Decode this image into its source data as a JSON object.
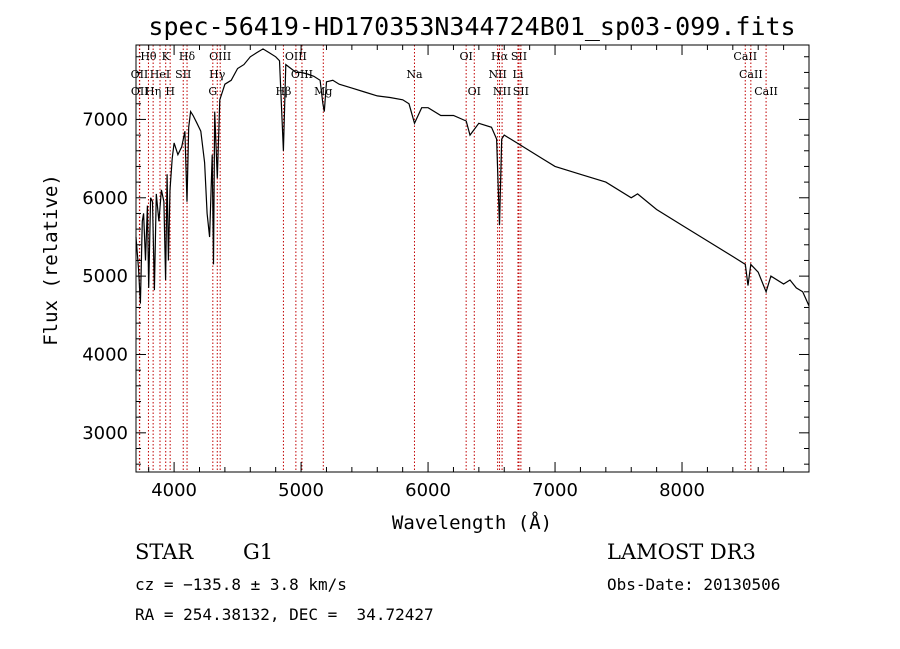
{
  "chart_data": {
    "type": "line",
    "title": "spec-56419-HD170353N344724B01_sp03-099.fits",
    "xlabel": "Wavelength (Å)",
    "ylabel": "Flux (relative)",
    "xlim": [
      3700,
      9000
    ],
    "ylim": [
      2500,
      7950
    ],
    "xticks": [
      4000,
      5000,
      6000,
      7000,
      8000
    ],
    "yticks": [
      3000,
      4000,
      5000,
      6000,
      7000
    ],
    "tick_labels_x": [
      "4000",
      "5000",
      "6000",
      "7000",
      "8000"
    ],
    "tick_labels_y": [
      "3000",
      "4000",
      "5000",
      "6000",
      "7000"
    ],
    "series": [
      {
        "name": "spectrum",
        "x": [
          3700,
          3720,
          3735,
          3750,
          3760,
          3775,
          3790,
          3800,
          3815,
          3830,
          3845,
          3860,
          3880,
          3900,
          3920,
          3933,
          3945,
          3955,
          3968,
          3985,
          4000,
          4030,
          4060,
          4085,
          4102,
          4115,
          4130,
          4150,
          4180,
          4210,
          4240,
          4260,
          4280,
          4300,
          4310,
          4320,
          4340,
          4360,
          4400,
          4450,
          4500,
          4550,
          4600,
          4650,
          4700,
          4750,
          4800,
          4830,
          4861,
          4880,
          4920,
          4960,
          5000,
          5050,
          5100,
          5150,
          5172,
          5183,
          5200,
          5250,
          5300,
          5400,
          5500,
          5600,
          5700,
          5800,
          5850,
          5893,
          5950,
          6000,
          6100,
          6200,
          6300,
          6330,
          6400,
          6500,
          6540,
          6563,
          6580,
          6600,
          6650,
          6700,
          6800,
          6900,
          7000,
          7200,
          7400,
          7600,
          7650,
          7800,
          8000,
          8200,
          8400,
          8498,
          8520,
          8542,
          8600,
          8662,
          8700,
          8800,
          8850,
          8900,
          8950,
          9000
        ],
        "values": [
          5500,
          5100,
          4650,
          5700,
          5800,
          5200,
          5900,
          4850,
          6000,
          5950,
          4820,
          6050,
          5700,
          6100,
          5950,
          4950,
          6300,
          5200,
          6100,
          6500,
          6700,
          6550,
          6650,
          6850,
          5950,
          6900,
          7100,
          7050,
          6950,
          6850,
          6450,
          5800,
          5500,
          6550,
          5150,
          7100,
          6250,
          7250,
          7450,
          7500,
          7650,
          7700,
          7800,
          7850,
          7900,
          7850,
          7800,
          7750,
          6600,
          7700,
          7650,
          7600,
          7600,
          7580,
          7550,
          7500,
          7200,
          7100,
          7480,
          7500,
          7450,
          7400,
          7350,
          7300,
          7280,
          7250,
          7200,
          6950,
          7150,
          7150,
          7050,
          7050,
          6980,
          6800,
          6950,
          6900,
          6750,
          5650,
          6750,
          6800,
          6750,
          6700,
          6600,
          6500,
          6400,
          6300,
          6200,
          6000,
          6050,
          5850,
          5650,
          5450,
          5250,
          5150,
          4880,
          5150,
          5050,
          4800,
          5000,
          4900,
          4950,
          4850,
          4800,
          4620
        ]
      }
    ],
    "lines": [
      {
        "name": "Hθ",
        "wave": 3798,
        "row": 1
      },
      {
        "name": "OII",
        "wave": 3727,
        "row": 2
      },
      {
        "name": "OII",
        "wave": 3729,
        "row": 3
      },
      {
        "name": "K",
        "wave": 3934,
        "row": 1
      },
      {
        "name": "H",
        "wave": 3969,
        "row": 3
      },
      {
        "name": "HeI",
        "wave": 3889,
        "row": 2
      },
      {
        "name": "Hη",
        "wave": 3835,
        "row": 3
      },
      {
        "name": "SII",
        "wave": 4072,
        "row": 2
      },
      {
        "name": "Hδ",
        "wave": 4102,
        "row": 1
      },
      {
        "name": "OIII",
        "wave": 4363,
        "row": 1
      },
      {
        "name": "Hγ",
        "wave": 4340,
        "row": 2
      },
      {
        "name": "G",
        "wave": 4305,
        "row": 3
      },
      {
        "name": "OIII",
        "wave": 4959,
        "row": 1
      },
      {
        "name": "OIII",
        "wave": 5007,
        "row": 2
      },
      {
        "name": "Hβ",
        "wave": 4861,
        "row": 3
      },
      {
        "name": "Mg",
        "wave": 5175,
        "row": 3
      },
      {
        "name": "Na",
        "wave": 5893,
        "row": 2
      },
      {
        "name": "OI",
        "wave": 6300,
        "row": 1
      },
      {
        "name": "OI",
        "wave": 6364,
        "row": 3
      },
      {
        "name": "Hα",
        "wave": 6563,
        "row": 1
      },
      {
        "name": "NII",
        "wave": 6548,
        "row": 2
      },
      {
        "name": "NII",
        "wave": 6583,
        "row": 3
      },
      {
        "name": "SII",
        "wave": 6716,
        "row": 1
      },
      {
        "name": "Li",
        "wave": 6708,
        "row": 2
      },
      {
        "name": "SII",
        "wave": 6731,
        "row": 3
      },
      {
        "name": "CaII",
        "wave": 8498,
        "row": 1
      },
      {
        "name": "CaII",
        "wave": 8542,
        "row": 2
      },
      {
        "name": "CaII",
        "wave": 8662,
        "row": 3
      }
    ]
  },
  "info": {
    "object_class": "STAR",
    "subclass": "G1",
    "survey": "LAMOST DR3",
    "cz": "cz = −135.8 ± 3.8 km/s",
    "obs_date": "Obs-Date: 20130506",
    "coords": "RA = 254.38132, DEC =  34.72427"
  }
}
